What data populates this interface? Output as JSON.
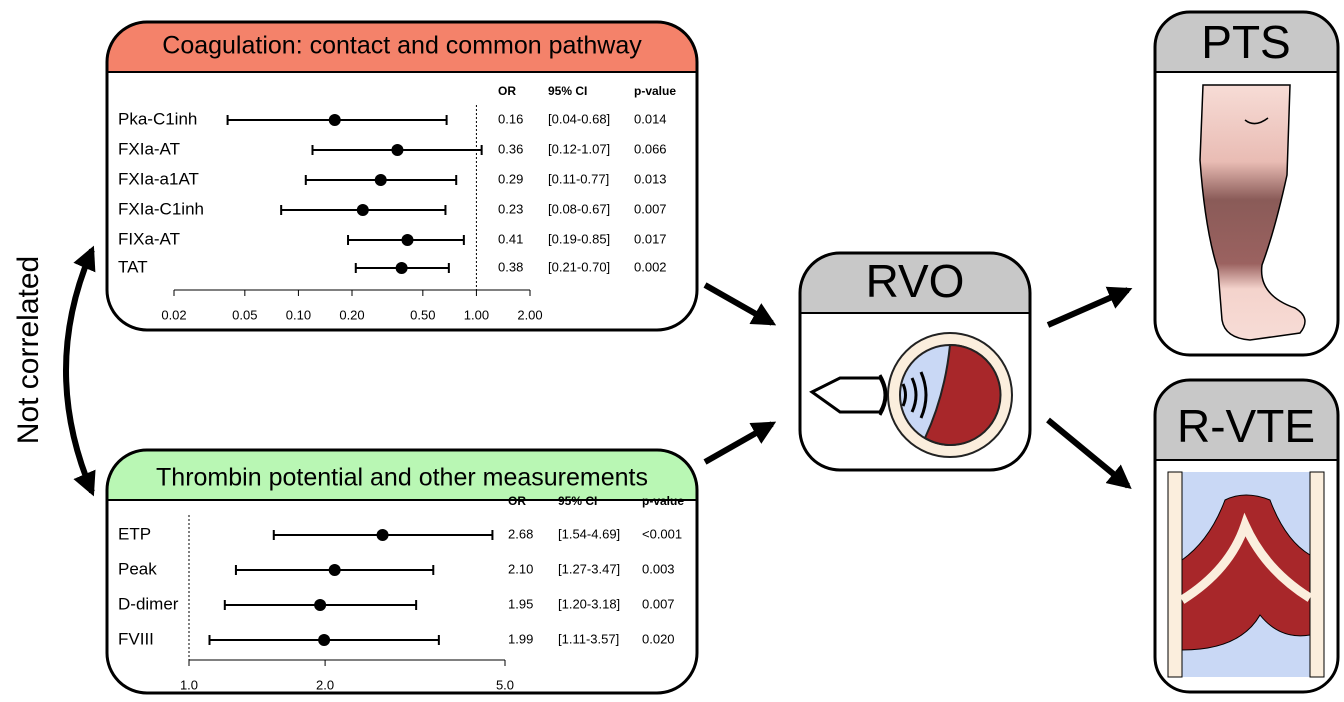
{
  "side_label": "Not correlated",
  "chart_data": [
    {
      "type": "forest",
      "title": "Coagulation: contact and common pathway",
      "color": "#f4826a",
      "columns": [
        "OR",
        "95% CI",
        "p-value"
      ],
      "categories": [
        "Pka-C1inh",
        "FXIa-AT",
        "FXIa-a1AT",
        "FXIa-C1inh",
        "FIXa-AT",
        "TAT"
      ],
      "values": [
        0.16,
        0.36,
        0.29,
        0.23,
        0.41,
        0.38
      ],
      "lower": [
        0.04,
        0.12,
        0.11,
        0.08,
        0.19,
        0.21
      ],
      "upper": [
        0.68,
        1.07,
        0.77,
        0.67,
        0.85,
        0.7
      ],
      "value_labels": [
        "0.16",
        "0.36",
        "0.29",
        "0.23",
        "0.41",
        "0.38"
      ],
      "ci_labels": [
        "[0.04-0.68]",
        "[0.12-1.07]",
        "[0.11-0.77]",
        "[0.08-0.67]",
        "[0.19-0.85]",
        "[0.21-0.70]"
      ],
      "p_labels": [
        "0.014",
        "0.066",
        "0.013",
        "0.007",
        "0.017",
        "0.002"
      ],
      "log_x": true,
      "reference": 1,
      "xlim": [
        0.02,
        2
      ],
      "xticks": [
        0.02,
        0.05,
        {
          "value": 0.1,
          "label": "0.10"
        },
        {
          "value": 0.2,
          "label": "0.20"
        },
        {
          "value": 0.5,
          "label": "0.50"
        },
        {
          "value": 1,
          "label": "1.00"
        },
        {
          "value": 2,
          "label": "2.00"
        }
      ]
    },
    {
      "type": "forest",
      "title": "Thrombin potential and other measurements",
      "color": "#b9f7b4",
      "columns": [
        "OR",
        "95% CI",
        "p-value"
      ],
      "categories": [
        "ETP",
        "Peak",
        "D-dimer",
        "FVIII"
      ],
      "values": [
        2.68,
        2.1,
        1.95,
        1.99
      ],
      "lower": [
        1.54,
        1.27,
        1.2,
        1.11
      ],
      "upper": [
        4.69,
        3.47,
        3.18,
        3.57
      ],
      "value_labels": [
        "2.68",
        "2.10",
        "1.95",
        "1.99"
      ],
      "ci_labels": [
        "[1.54-4.69]",
        "[1.27-3.47]",
        "[1.20-3.18]",
        "[1.11-3.57]"
      ],
      "p_labels": [
        "<0.001",
        "0.003",
        "0.007",
        "0.020"
      ],
      "log_x": true,
      "reference": 1,
      "xlim": [
        1,
        5
      ],
      "xticks": [
        {
          "value": 1,
          "label": "1.0"
        },
        {
          "value": 2,
          "label": "2.0"
        },
        {
          "value": 5,
          "label": "5.0"
        }
      ]
    }
  ],
  "nodes": [
    {
      "label": "RVO"
    },
    {
      "label": "PTS"
    },
    {
      "label": "R-VTE"
    }
  ]
}
